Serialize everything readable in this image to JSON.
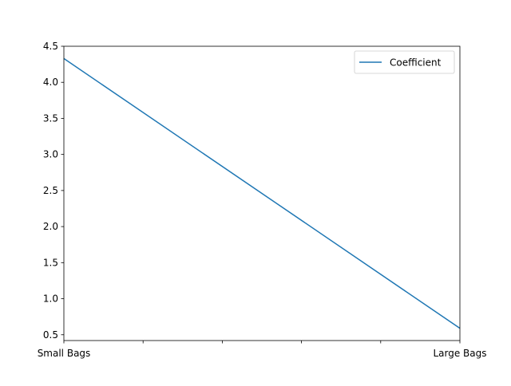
{
  "chart_data": {
    "type": "line",
    "title": "",
    "xlabel": "",
    "ylabel": "",
    "categories": [
      "Small Bags",
      "Large Bags"
    ],
    "x_tick_count": 6,
    "ylim": [
      0.42,
      4.5
    ],
    "yticks": [
      0.5,
      1.0,
      1.5,
      2.0,
      2.5,
      3.0,
      3.5,
      4.0,
      4.5
    ],
    "ytick_labels": [
      "0.5",
      "1.0",
      "1.5",
      "2.0",
      "2.5",
      "3.0",
      "3.5",
      "4.0",
      "4.5"
    ],
    "grid": false,
    "legend_position": "top-right",
    "series": [
      {
        "name": "Coefficient",
        "color": "#1f77b4",
        "values": [
          4.33,
          0.59
        ]
      }
    ]
  }
}
